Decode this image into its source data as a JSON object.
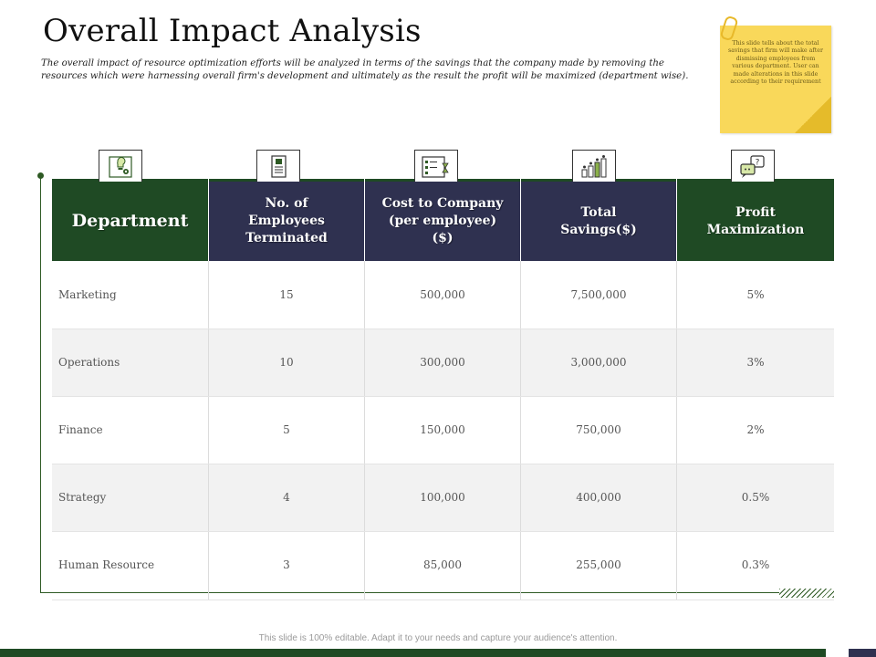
{
  "title": "Overall Impact Analysis",
  "subtitle": "The overall impact of resource optimization efforts will be analyzed in terms of the savings that the company made by removing the resources which were harnessing overall firm's development and ultimately as the result the profit will be maximized (department wise).",
  "note": "This slide tells about the total savings that firm will make after dismissing employees from various department. User can made alterations in this slide according to their requirement",
  "table": {
    "headers": [
      "Department",
      "No. of Employees Terminated",
      "Cost to Company (per employee)($)",
      "Total Savings($)",
      "Profit Maximization"
    ],
    "rows": [
      [
        "Marketing",
        "15",
        "500,000",
        "7,500,000",
        "5%"
      ],
      [
        "Operations",
        "10",
        "300,000",
        "3,000,000",
        "3%"
      ],
      [
        "Finance",
        "5",
        "150,000",
        "750,000",
        "2%"
      ],
      [
        "Strategy",
        "4",
        "100,000",
        "400,000",
        "0.5%"
      ],
      [
        "Human Resource",
        "3",
        "85,000",
        "255,000",
        "0.3%"
      ]
    ]
  },
  "icons": [
    "idea-gear-icon",
    "document-icon",
    "checklist-timer-icon",
    "growth-bars-icon",
    "chat-question-icon"
  ],
  "colors": {
    "green": "#1f4a24",
    "navy": "#2f3150",
    "note": "#f9d85a"
  },
  "footer": "This slide is 100% editable. Adapt it to your needs and capture your audience's attention."
}
